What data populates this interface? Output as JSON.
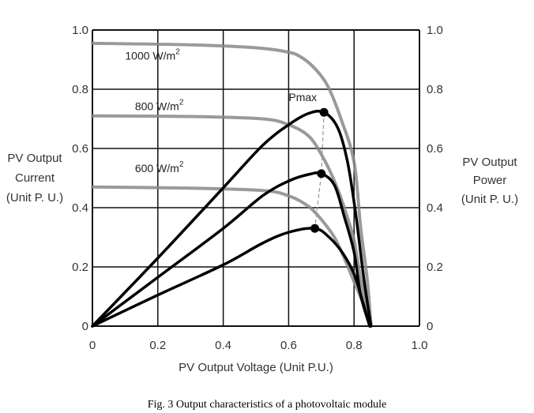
{
  "chart_data": {
    "type": "line",
    "title": "",
    "caption": "Fig. 3 Output characteristics of a photovoltaic module",
    "xlabel": "PV Output Voltage (Unit P.U.)",
    "ylabel_left": [
      "PV Output",
      "Current",
      "(Unit P. U.)"
    ],
    "ylabel_right": [
      "PV Output",
      "Power",
      "(Unit P. U.)"
    ],
    "xlim": [
      0,
      1.0
    ],
    "ylim": [
      0,
      1.0
    ],
    "x_ticks": [
      "0",
      "0.2",
      "0.4",
      "0.6",
      "0.8",
      "1.0"
    ],
    "y_ticks_left": [
      "0",
      "0.2",
      "0.4",
      "0.6",
      "0.8",
      "1.0"
    ],
    "y_ticks_right": [
      "0",
      "0.2",
      "0.4",
      "0.6",
      "0.8",
      "1.0"
    ],
    "grid": true,
    "series": [
      {
        "name": "1000 W/m2 current",
        "kind": "current",
        "color": "#888888",
        "points": [
          [
            0,
            0.955
          ],
          [
            0.3,
            0.95
          ],
          [
            0.5,
            0.94
          ],
          [
            0.6,
            0.925
          ],
          [
            0.64,
            0.907
          ],
          [
            0.68,
            0.87
          ],
          [
            0.72,
            0.81
          ],
          [
            0.76,
            0.7
          ],
          [
            0.8,
            0.555
          ],
          [
            0.82,
            0.335
          ],
          [
            0.84,
            0.16
          ],
          [
            0.852,
            0
          ]
        ]
      },
      {
        "name": "800 W/m2 current",
        "kind": "current",
        "color": "#888888",
        "points": [
          [
            0,
            0.71
          ],
          [
            0.3,
            0.708
          ],
          [
            0.52,
            0.7
          ],
          [
            0.6,
            0.68
          ],
          [
            0.66,
            0.643
          ],
          [
            0.7,
            0.58
          ],
          [
            0.74,
            0.49
          ],
          [
            0.77,
            0.4
          ],
          [
            0.8,
            0.29
          ],
          [
            0.82,
            0.16
          ],
          [
            0.848,
            0
          ]
        ]
      },
      {
        "name": "600 W/m2 current",
        "kind": "current",
        "color": "#888888",
        "points": [
          [
            0,
            0.47
          ],
          [
            0.3,
            0.466
          ],
          [
            0.52,
            0.458
          ],
          [
            0.6,
            0.44
          ],
          [
            0.66,
            0.405
          ],
          [
            0.7,
            0.36
          ],
          [
            0.74,
            0.3
          ],
          [
            0.77,
            0.23
          ],
          [
            0.8,
            0.15
          ],
          [
            0.83,
            0.07
          ],
          [
            0.848,
            0
          ]
        ]
      },
      {
        "name": "1000 W/m2 power",
        "kind": "power",
        "color": "#000000",
        "points": [
          [
            0,
            0
          ],
          [
            0.2,
            0.23
          ],
          [
            0.4,
            0.467
          ],
          [
            0.52,
            0.61
          ],
          [
            0.6,
            0.68
          ],
          [
            0.66,
            0.718
          ],
          [
            0.708,
            0.722
          ],
          [
            0.75,
            0.67
          ],
          [
            0.78,
            0.555
          ],
          [
            0.805,
            0.38
          ],
          [
            0.83,
            0.16
          ],
          [
            0.852,
            0
          ]
        ]
      },
      {
        "name": "800 W/m2 power",
        "kind": "power",
        "color": "#000000",
        "points": [
          [
            0,
            0
          ],
          [
            0.2,
            0.165
          ],
          [
            0.4,
            0.33
          ],
          [
            0.52,
            0.44
          ],
          [
            0.6,
            0.49
          ],
          [
            0.66,
            0.512
          ],
          [
            0.7,
            0.515
          ],
          [
            0.74,
            0.476
          ],
          [
            0.77,
            0.37
          ],
          [
            0.8,
            0.25
          ],
          [
            0.82,
            0.106
          ],
          [
            0.848,
            0
          ]
        ]
      },
      {
        "name": "600 W/m2 power",
        "kind": "power",
        "color": "#000000",
        "points": [
          [
            0,
            0
          ],
          [
            0.2,
            0.105
          ],
          [
            0.4,
            0.207
          ],
          [
            0.52,
            0.28
          ],
          [
            0.6,
            0.317
          ],
          [
            0.68,
            0.33
          ],
          [
            0.724,
            0.3
          ],
          [
            0.765,
            0.247
          ],
          [
            0.8,
            0.176
          ],
          [
            0.825,
            0.088
          ],
          [
            0.848,
            0
          ]
        ]
      }
    ],
    "pmax_points": [
      [
        0.708,
        0.722
      ],
      [
        0.7,
        0.515
      ],
      [
        0.68,
        0.33
      ]
    ],
    "annotations": [
      {
        "text": "1000 W/m",
        "sup": "2",
        "x": 0.1,
        "y": 0.9
      },
      {
        "text": "800 W/m",
        "sup": "2",
        "x": 0.13,
        "y": 0.73
      },
      {
        "text": "600 W/m",
        "sup": "2",
        "x": 0.13,
        "y": 0.52
      },
      {
        "text": "Pmax",
        "x": 0.6,
        "y": 0.76
      }
    ]
  }
}
